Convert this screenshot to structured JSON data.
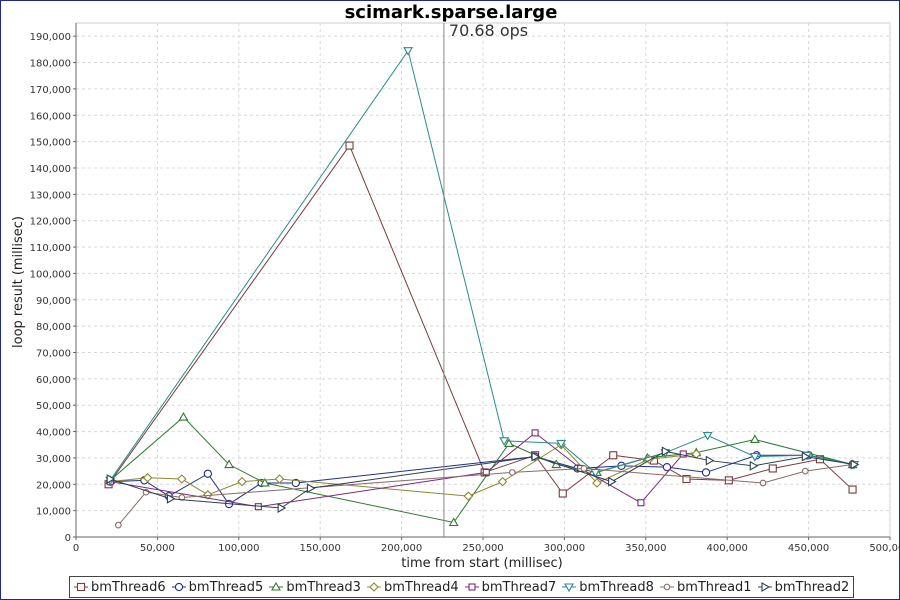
{
  "chart_data": {
    "type": "line",
    "title": "scimark.sparse.large",
    "xlabel": "time from start (millisec)",
    "ylabel": "loop result (millisec)",
    "xlim": [
      0,
      500000
    ],
    "ylim": [
      0,
      195000
    ],
    "x_ticks": [
      0,
      50000,
      100000,
      150000,
      200000,
      250000,
      300000,
      350000,
      400000,
      450000,
      500000
    ],
    "x_tick_labels": [
      "0",
      "50,000",
      "100,000",
      "150,000",
      "200,000",
      "250,000",
      "300,000",
      "350,000",
      "400,000",
      "450,000",
      "500,000"
    ],
    "y_ticks": [
      0,
      10000,
      20000,
      30000,
      40000,
      50000,
      60000,
      70000,
      80000,
      90000,
      100000,
      110000,
      120000,
      130000,
      140000,
      150000,
      160000,
      170000,
      180000,
      190000
    ],
    "y_tick_labels": [
      "0",
      "10,000",
      "20,000",
      "30,000",
      "40,000",
      "50,000",
      "60,000",
      "70,000",
      "80,000",
      "90,000",
      "100,000",
      "110,000",
      "120,000",
      "130,000",
      "140,000",
      "150,000",
      "160,000",
      "170,000",
      "180,000",
      "190,000"
    ],
    "grid": true,
    "legend_position": "bottom",
    "annotation": {
      "label": "70.68 ops",
      "x": 226000
    },
    "series": [
      {
        "name": "bmThread6",
        "marker": "square",
        "color": "#7a3b3b",
        "x": [
          20000,
          168000,
          251000,
          282000,
          299000,
          330000,
          355000,
          375000,
          401000,
          428000,
          457000,
          477000
        ],
        "y": [
          20000,
          148500,
          24500,
          31000,
          16500,
          31000,
          29000,
          22000,
          21500,
          26000,
          29500,
          18000
        ]
      },
      {
        "name": "bmThread5",
        "marker": "circle",
        "color": "#1f2f8c",
        "x": [
          21000,
          42000,
          57000,
          81000,
          94000,
          114000,
          135000,
          282000,
          308000,
          335000,
          363000,
          387000,
          418000,
          450000,
          477000
        ],
        "y": [
          21000,
          21500,
          15500,
          24000,
          12500,
          20500,
          20500,
          30500,
          26000,
          27000,
          26500,
          24500,
          31000,
          31000,
          27500
        ]
      },
      {
        "name": "bmThread3",
        "marker": "triangle-up",
        "color": "#2f7a2f",
        "x": [
          21000,
          66000,
          94000,
          116000,
          232000,
          266000,
          295000,
          320000,
          351000,
          381000,
          417000,
          477000
        ],
        "y": [
          21500,
          45500,
          27500,
          20500,
          5500,
          35500,
          27500,
          24500,
          30000,
          32000,
          37000,
          27500
        ]
      },
      {
        "name": "bmThread4",
        "marker": "diamond",
        "color": "#8a8a30",
        "x": [
          21000,
          44000,
          65000,
          81000,
          102000,
          125000,
          241000,
          262000,
          298000,
          320000,
          352000,
          381000
        ],
        "y": [
          21000,
          22500,
          22000,
          16000,
          21000,
          22000,
          15500,
          21000,
          35000,
          20500,
          29500,
          31500
        ]
      },
      {
        "name": "bmThread7",
        "marker": "square-small",
        "color": "#7a2a7a",
        "x": [
          21000,
          112000,
          252000,
          282000,
          310000,
          347000,
          373000
        ],
        "y": [
          21000,
          11500,
          24500,
          39500,
          26000,
          13000,
          31500
        ]
      },
      {
        "name": "bmThread8",
        "marker": "triangle-down",
        "color": "#2a8a8a",
        "x": [
          21000,
          204000,
          263000,
          298000,
          319000,
          362000,
          388000,
          417000,
          449000,
          478000
        ],
        "y": [
          21500,
          184500,
          36500,
          35500,
          24500,
          32000,
          38500,
          30500,
          31000,
          27500
        ]
      },
      {
        "name": "bmThread1",
        "marker": "circle-small",
        "color": "#8a6a6a",
        "x": [
          26000,
          43000,
          65000,
          268000,
          312000,
          422000,
          448000,
          477000
        ],
        "y": [
          4500,
          17000,
          15000,
          24500,
          26000,
          20500,
          25000,
          27500
        ]
      },
      {
        "name": "bmThread2",
        "marker": "triangle-right",
        "color": "#2f3f4f",
        "x": [
          21000,
          58000,
          126000,
          144000,
          282000,
          329000,
          362000,
          389000,
          416000,
          448000,
          478000
        ],
        "y": [
          22000,
          14500,
          11000,
          18500,
          30500,
          21000,
          32500,
          29000,
          27000,
          30500,
          27500
        ]
      }
    ]
  }
}
